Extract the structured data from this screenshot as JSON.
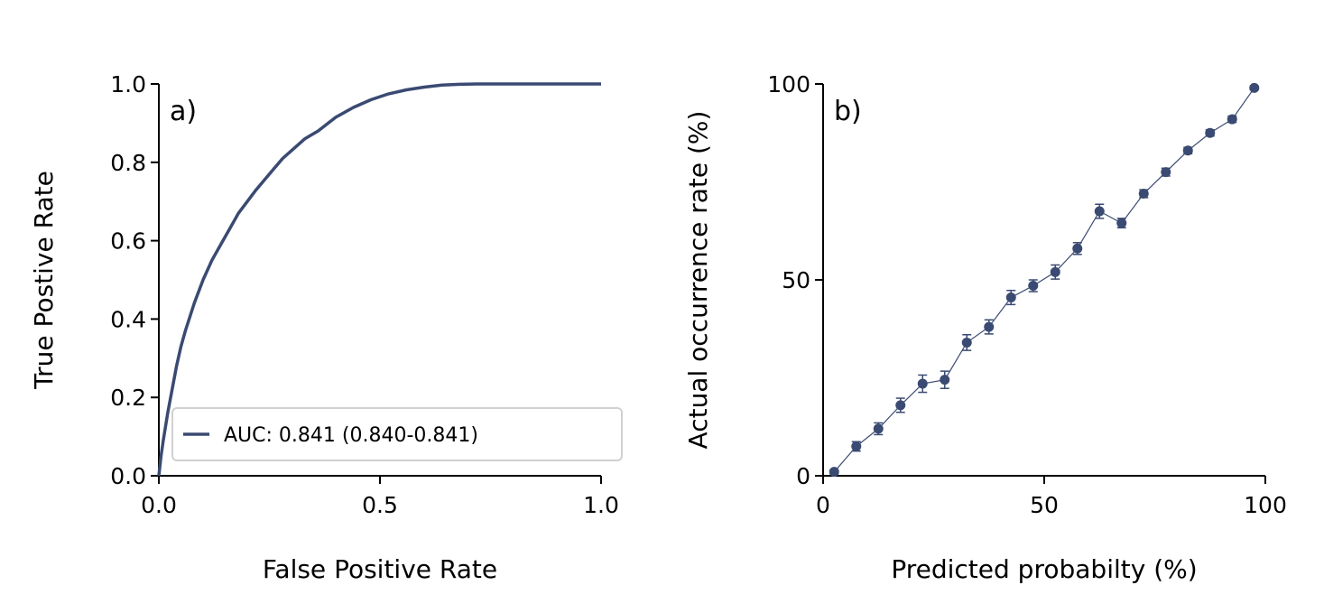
{
  "series_color": "#3a4a72",
  "chart_data": [
    {
      "type": "line",
      "panel_label": "a)",
      "xlabel": "False Positive Rate",
      "ylabel": "True Postive Rate",
      "xlim": [
        0,
        1
      ],
      "ylim": [
        0,
        1
      ],
      "x_ticks": [
        "0.0",
        "0.5",
        "1.0"
      ],
      "y_ticks": [
        "0.0",
        "0.2",
        "0.4",
        "0.6",
        "0.8",
        "1.0"
      ],
      "grid": false,
      "legend_position": "lower-right",
      "series": [
        {
          "name": "AUC: 0.841 (0.840-0.841)",
          "x": [
            0,
            0.005,
            0.01,
            0.02,
            0.03,
            0.04,
            0.05,
            0.06,
            0.08,
            0.1,
            0.12,
            0.14,
            0.16,
            0.18,
            0.2,
            0.22,
            0.25,
            0.28,
            0.3,
            0.33,
            0.36,
            0.4,
            0.44,
            0.48,
            0.52,
            0.56,
            0.6,
            0.64,
            0.68,
            0.72,
            0.76,
            0.8,
            0.9,
            1.0
          ],
          "y": [
            0,
            0.05,
            0.09,
            0.16,
            0.22,
            0.28,
            0.33,
            0.37,
            0.44,
            0.5,
            0.55,
            0.59,
            0.63,
            0.67,
            0.7,
            0.73,
            0.77,
            0.81,
            0.83,
            0.86,
            0.88,
            0.915,
            0.94,
            0.96,
            0.975,
            0.985,
            0.992,
            0.997,
            0.999,
            1.0,
            1.0,
            1.0,
            1.0,
            1.0
          ]
        }
      ]
    },
    {
      "type": "scatter",
      "panel_label": "b)",
      "xlabel": "Predicted probabilty (%)",
      "ylabel": "Actual occurrence rate (%)",
      "xlim": [
        0,
        100
      ],
      "ylim": [
        0,
        100
      ],
      "x_ticks": [
        "0",
        "50",
        "100"
      ],
      "y_ticks": [
        "0",
        "50",
        "100"
      ],
      "grid": false,
      "series": [
        {
          "x": [
            2.5,
            7.5,
            12.5,
            17.5,
            22.5,
            27.5,
            32.5,
            37.5,
            42.5,
            47.5,
            52.5,
            57.5,
            62.5,
            67.5,
            72.5,
            77.5,
            82.5,
            87.5,
            92.5,
            97.5
          ],
          "y": [
            1,
            7.5,
            12,
            18,
            23.5,
            24.5,
            34,
            38,
            45.5,
            48.5,
            52,
            58,
            67.5,
            64.5,
            72,
            77.5,
            83,
            87.5,
            91,
            99
          ],
          "error": [
            0.5,
            1.2,
            1.5,
            1.8,
            2.2,
            2.2,
            2.0,
            1.8,
            1.8,
            1.5,
            1.8,
            1.5,
            1.8,
            1.2,
            1.0,
            1.0,
            0.8,
            0.8,
            0.8,
            0.5
          ]
        }
      ]
    }
  ]
}
